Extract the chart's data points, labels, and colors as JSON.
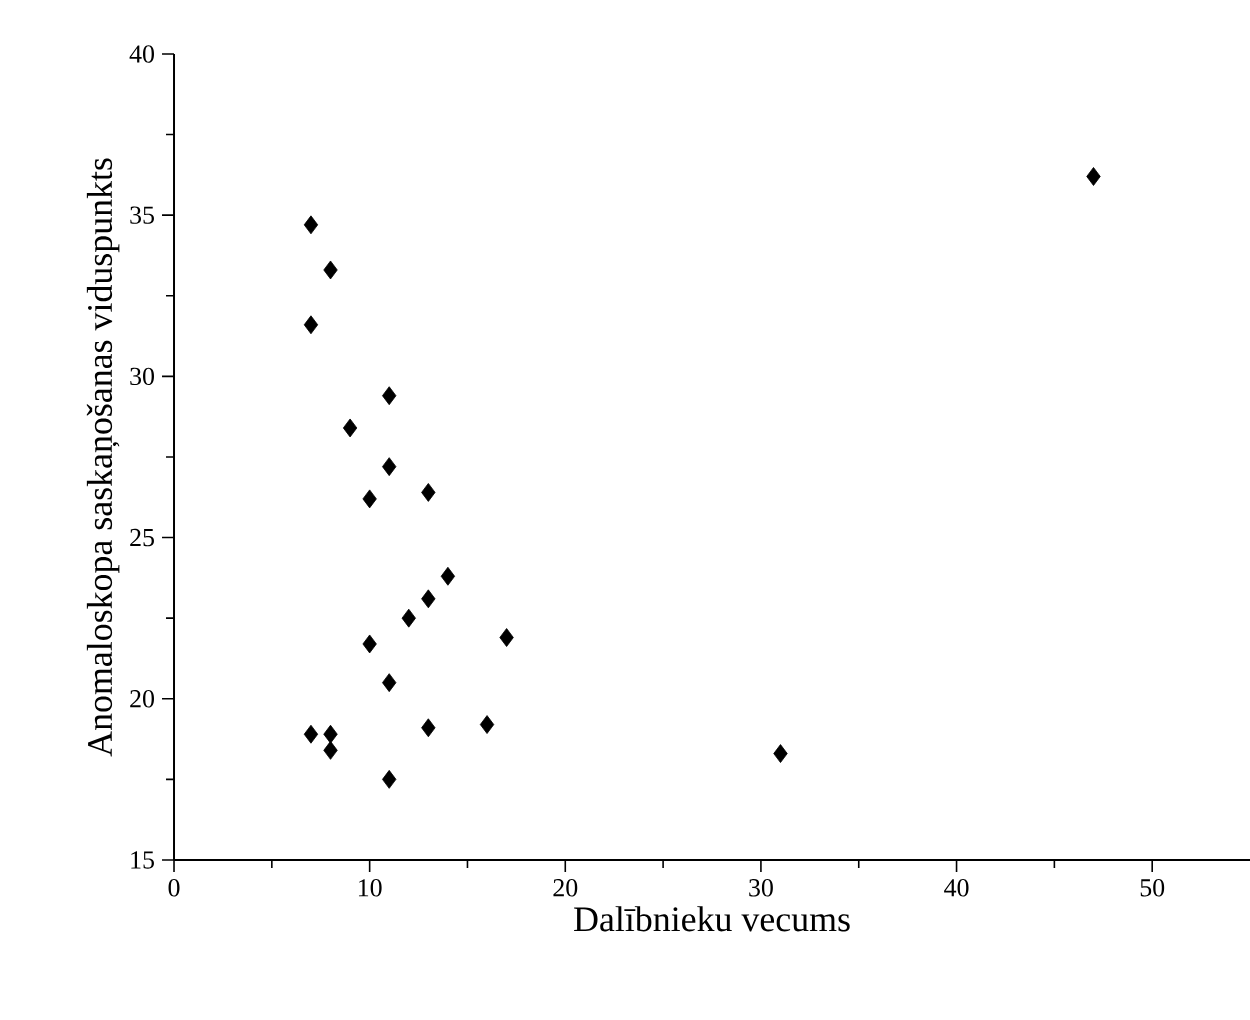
{
  "chart_data": {
    "type": "scatter",
    "xlabel": "Dalībnieku vecums",
    "ylabel": "Anomaloskopa saskaņošanas viduspunkts",
    "x": [
      7,
      8,
      7,
      11,
      9,
      11,
      10,
      13,
      14,
      13,
      12,
      17,
      10,
      11,
      7,
      8,
      8,
      13,
      16,
      11,
      31,
      47
    ],
    "values": [
      34.7,
      33.3,
      31.6,
      29.4,
      28.4,
      27.2,
      26.2,
      26.4,
      23.8,
      23.1,
      22.5,
      21.9,
      21.7,
      20.5,
      18.9,
      18.9,
      18.4,
      19.1,
      19.2,
      17.5,
      18.3,
      36.2
    ],
    "color": "#000000",
    "marker": "diamond",
    "grid": false,
    "xlim": [
      0,
      55
    ],
    "ylim": [
      15,
      40
    ],
    "xticks": [
      0,
      10,
      20,
      30,
      40,
      50
    ],
    "yticks": [
      15,
      20,
      25,
      30,
      35,
      40
    ]
  }
}
